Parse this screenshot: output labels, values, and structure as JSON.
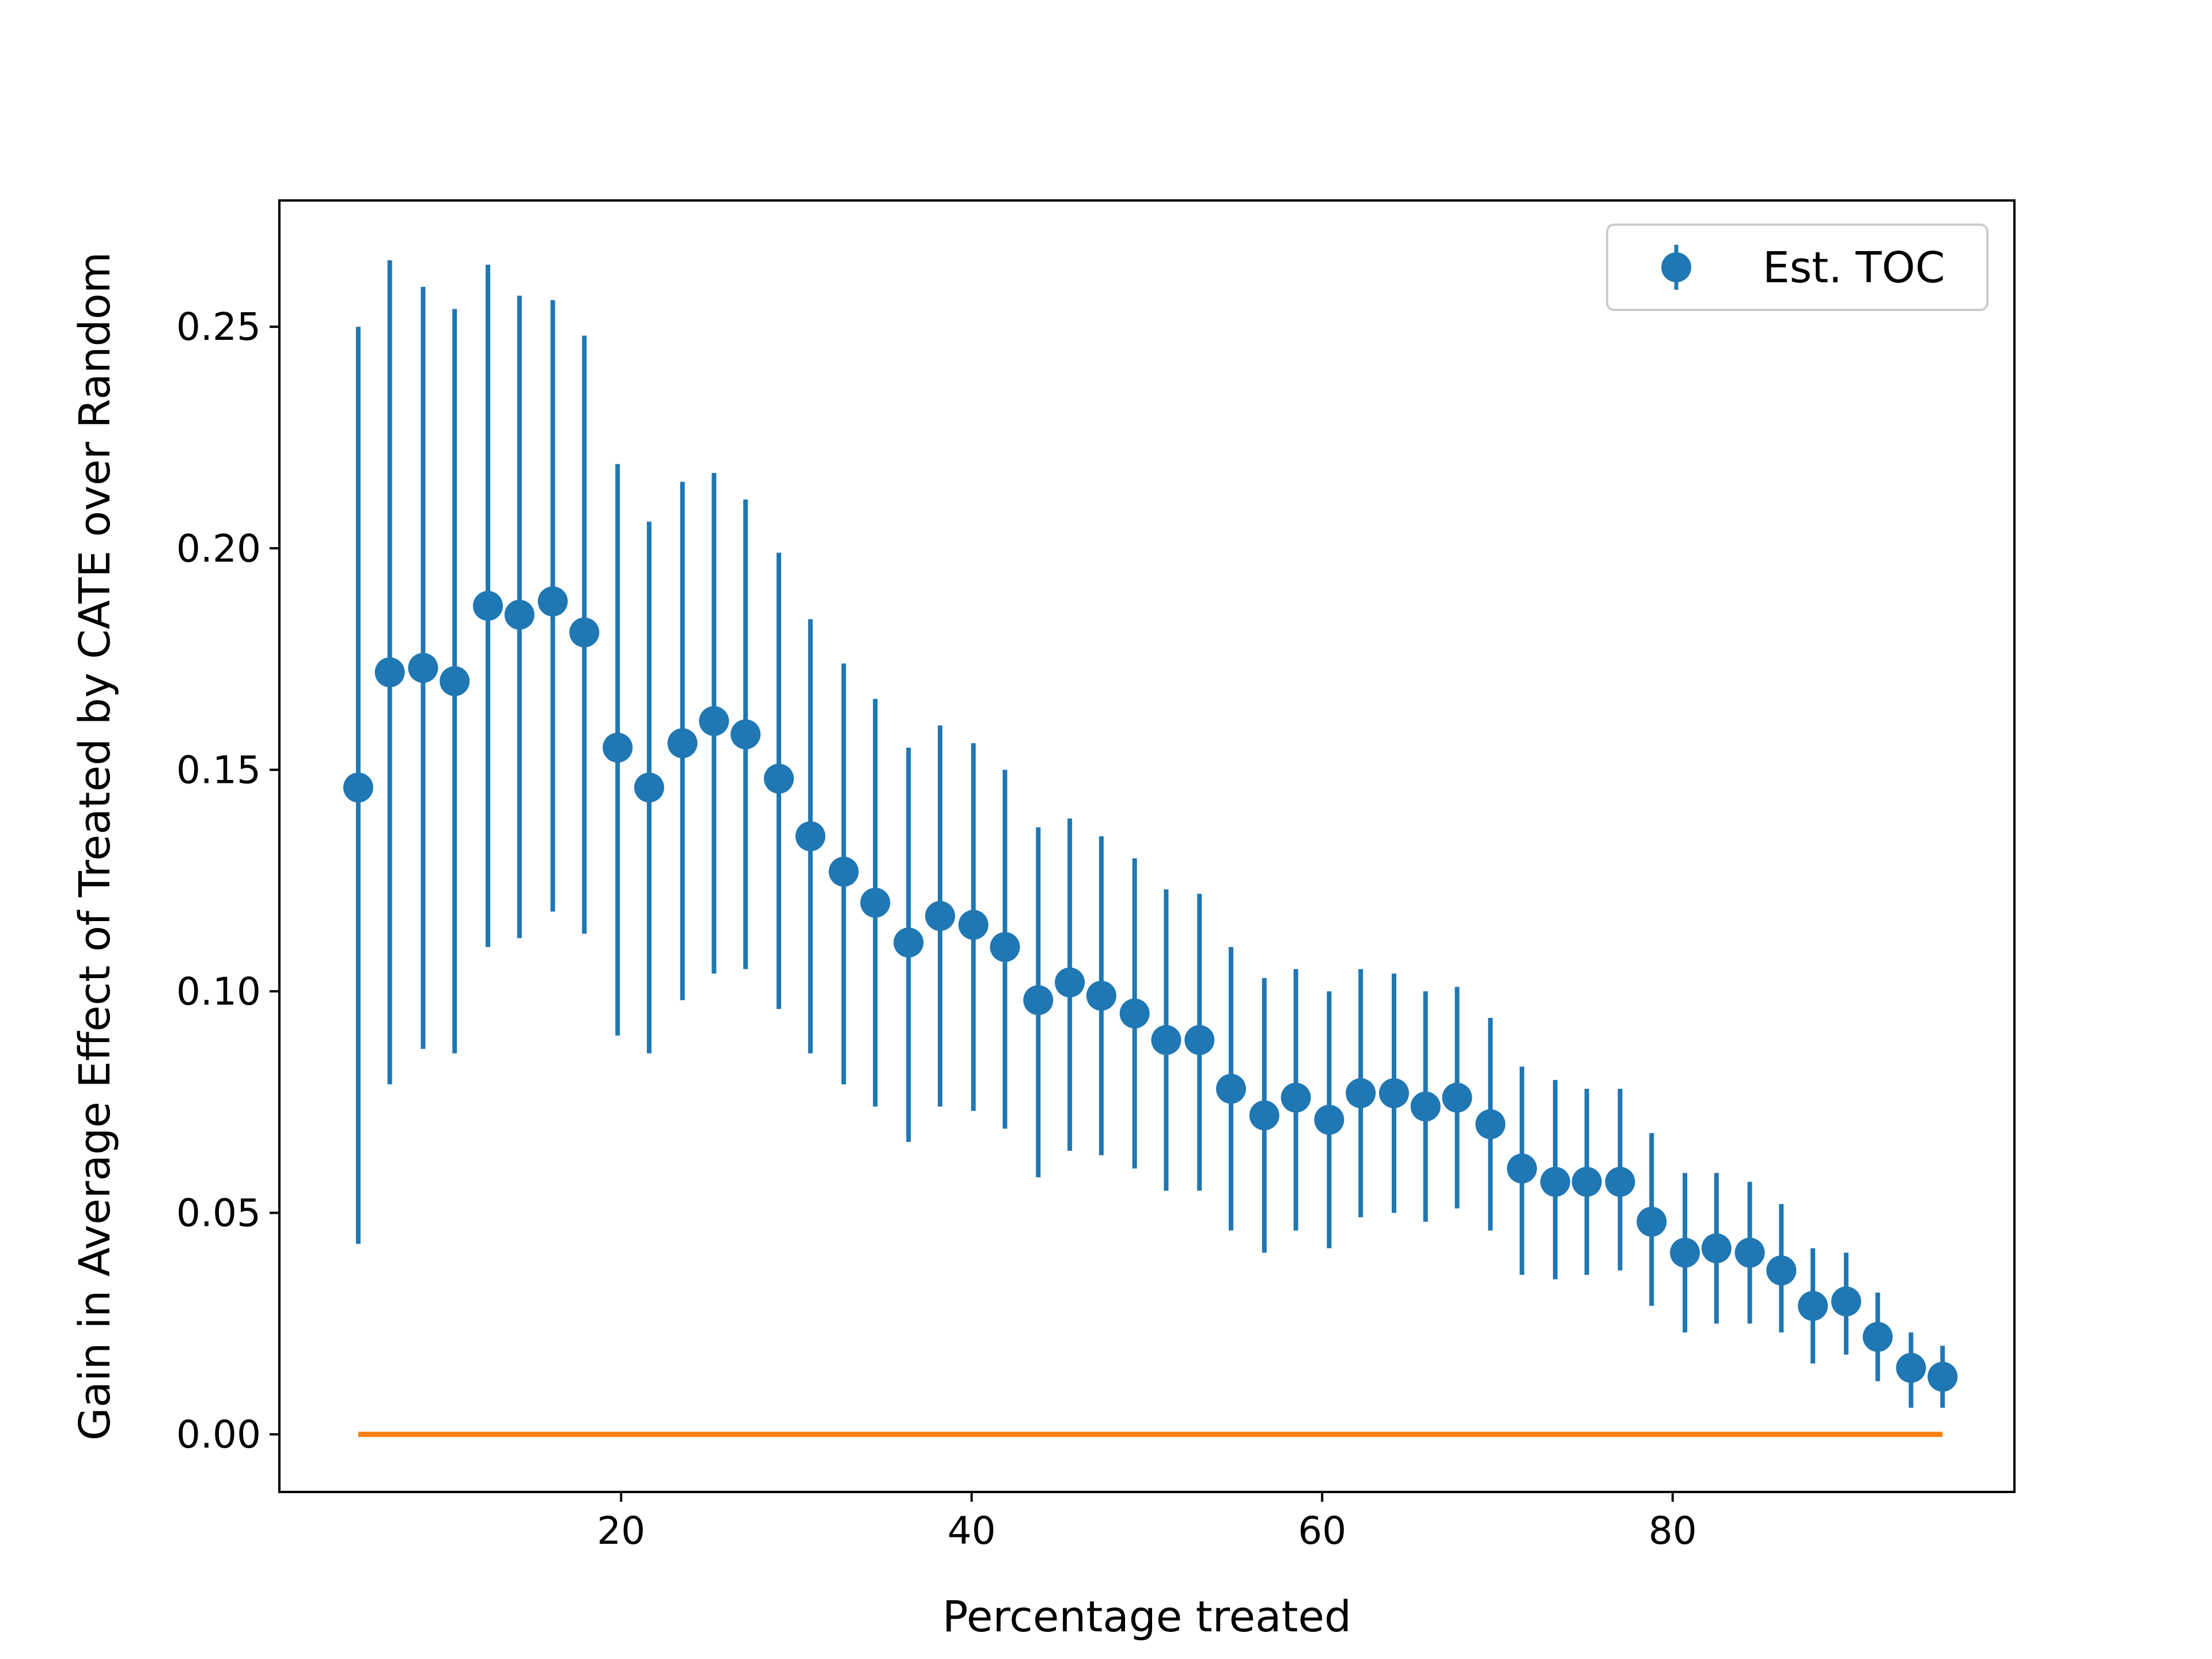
{
  "chart_data": {
    "type": "scatter",
    "title": "",
    "xlabel": "Percentage treated",
    "ylabel": "Gain in Average Effect of Treated by CATE over Random",
    "xlim": [
      0.5,
      99.5
    ],
    "ylim": [
      -0.013,
      0.2785
    ],
    "x_ticks": [
      20,
      40,
      60,
      80
    ],
    "x_tick_labels": [
      "20",
      "40",
      "60",
      "80"
    ],
    "y_ticks": [
      0.0,
      0.05,
      0.1,
      0.15,
      0.2,
      0.25
    ],
    "y_tick_labels": [
      "0.00",
      "0.05",
      "0.10",
      "0.15",
      "0.20",
      "0.25"
    ],
    "grid": false,
    "legend": {
      "placement": "top-right",
      "entries": [
        "Est. TOC"
      ]
    },
    "colors": {
      "series": "#1f77b4",
      "baseline": "#ff7f0e",
      "axes": "#000000"
    },
    "series": [
      {
        "name": "Est. TOC",
        "kind": "errorbar",
        "x": [
          5.0,
          6.8,
          8.7,
          10.5,
          12.4,
          14.2,
          16.1,
          17.9,
          19.8,
          21.6,
          23.5,
          25.3,
          27.1,
          29.0,
          30.8,
          32.7,
          34.5,
          36.4,
          38.2,
          40.1,
          41.9,
          43.8,
          45.6,
          47.4,
          49.3,
          51.1,
          53.0,
          54.8,
          56.7,
          58.5,
          60.4,
          62.2,
          64.1,
          65.9,
          67.7,
          69.6,
          71.4,
          73.3,
          75.1,
          77.0,
          78.8,
          80.7,
          82.5,
          84.4,
          86.2,
          88.0,
          89.9,
          91.7,
          93.6,
          95.4
        ],
        "y": [
          0.146,
          0.172,
          0.173,
          0.17,
          0.187,
          0.185,
          0.188,
          0.181,
          0.155,
          0.146,
          0.156,
          0.161,
          0.158,
          0.148,
          0.135,
          0.127,
          0.12,
          0.111,
          0.117,
          0.115,
          0.11,
          0.098,
          0.102,
          0.099,
          0.095,
          0.089,
          0.089,
          0.078,
          0.072,
          0.076,
          0.071,
          0.077,
          0.077,
          0.074,
          0.076,
          0.07,
          0.06,
          0.057,
          0.057,
          0.057,
          0.048,
          0.041,
          0.042,
          0.041,
          0.037,
          0.029,
          0.03,
          0.022,
          0.015,
          0.013
        ],
        "y_low": [
          0.043,
          0.079,
          0.087,
          0.086,
          0.11,
          0.112,
          0.118,
          0.113,
          0.09,
          0.086,
          0.098,
          0.104,
          0.105,
          0.096,
          0.086,
          0.079,
          0.074,
          0.066,
          0.074,
          0.073,
          0.069,
          0.058,
          0.064,
          0.063,
          0.06,
          0.055,
          0.055,
          0.046,
          0.041,
          0.046,
          0.042,
          0.049,
          0.05,
          0.048,
          0.051,
          0.046,
          0.036,
          0.035,
          0.036,
          0.037,
          0.029,
          0.023,
          0.025,
          0.025,
          0.023,
          0.016,
          0.018,
          0.012,
          0.006,
          0.006
        ],
        "y_high": [
          0.25,
          0.265,
          0.259,
          0.254,
          0.264,
          0.257,
          0.256,
          0.248,
          0.219,
          0.206,
          0.215,
          0.217,
          0.211,
          0.199,
          0.184,
          0.174,
          0.166,
          0.155,
          0.16,
          0.156,
          0.15,
          0.137,
          0.139,
          0.135,
          0.13,
          0.123,
          0.122,
          0.11,
          0.103,
          0.105,
          0.1,
          0.105,
          0.104,
          0.1,
          0.101,
          0.094,
          0.083,
          0.08,
          0.078,
          0.078,
          0.068,
          0.059,
          0.059,
          0.057,
          0.052,
          0.042,
          0.041,
          0.032,
          0.023,
          0.02
        ]
      },
      {
        "name": "",
        "kind": "line",
        "x": [
          5.0,
          95.4
        ],
        "y": [
          0.0,
          0.0
        ]
      }
    ]
  }
}
